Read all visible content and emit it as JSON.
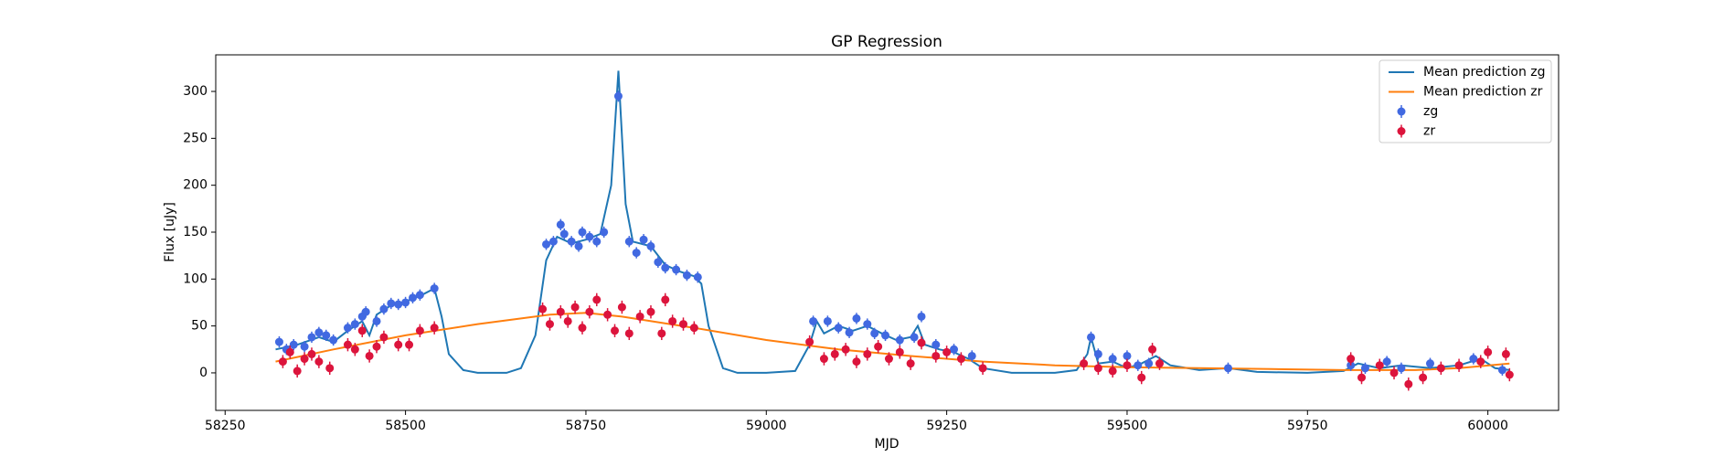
{
  "chart_data": {
    "type": "line",
    "title": "GP Regression",
    "xlabel": "MJD",
    "ylabel": "Flux [uJy]",
    "xlim": [
      58237,
      60098
    ],
    "ylim": [
      -40,
      339
    ],
    "xticks": [
      58250,
      58500,
      58750,
      59000,
      59250,
      59500,
      59750,
      60000
    ],
    "yticks": [
      0,
      50,
      100,
      150,
      200,
      250,
      300
    ],
    "grid": false,
    "legend": "upper right",
    "series": [
      {
        "name": "Mean prediction zg",
        "type": "line",
        "color": "#1f77b4",
        "x": [
          58320,
          58350,
          58380,
          58400,
          58420,
          58440,
          58450,
          58460,
          58480,
          58500,
          58520,
          58540,
          58550,
          58560,
          58580,
          58600,
          58640,
          58660,
          58680,
          58695,
          58710,
          58730,
          58750,
          58770,
          58785,
          58795,
          58805,
          58815,
          58840,
          58860,
          58880,
          58900,
          58910,
          58920,
          58940,
          58960,
          59000,
          59040,
          59060,
          59070,
          59080,
          59100,
          59120,
          59140,
          59160,
          59180,
          59200,
          59210,
          59220,
          59240,
          59260,
          59280,
          59300,
          59340,
          59400,
          59430,
          59445,
          59450,
          59460,
          59480,
          59500,
          59520,
          59540,
          59560,
          59600,
          59640,
          59680,
          59750,
          59800,
          59820,
          59850,
          59880,
          59920,
          59960,
          59990,
          60010,
          60030
        ],
        "values": [
          25,
          30,
          38,
          33,
          45,
          55,
          40,
          62,
          72,
          76,
          82,
          90,
          60,
          20,
          3,
          0,
          0,
          5,
          40,
          120,
          145,
          138,
          142,
          148,
          200,
          322,
          180,
          140,
          135,
          115,
          108,
          103,
          95,
          50,
          5,
          0,
          0,
          2,
          30,
          55,
          42,
          50,
          45,
          50,
          42,
          35,
          38,
          50,
          30,
          25,
          22,
          15,
          5,
          0,
          0,
          3,
          20,
          38,
          10,
          12,
          5,
          10,
          18,
          8,
          3,
          5,
          1,
          0,
          2,
          10,
          5,
          8,
          5,
          8,
          15,
          5,
          3
        ]
      },
      {
        "name": "Mean prediction zr",
        "type": "line",
        "color": "#ff7f0e",
        "x": [
          58320,
          58400,
          58500,
          58600,
          58700,
          58750,
          58800,
          58900,
          59000,
          59100,
          59200,
          59300,
          59400,
          59500,
          59600,
          59700,
          59800,
          59900,
          59960,
          60030
        ],
        "values": [
          12,
          25,
          40,
          52,
          62,
          64,
          60,
          48,
          35,
          25,
          18,
          12,
          8,
          6,
          5,
          4,
          3,
          3,
          5,
          10
        ]
      },
      {
        "name": "zg",
        "type": "errorbar",
        "color": "#4169e1",
        "yerr": 6,
        "x": [
          58325,
          58335,
          58345,
          58360,
          58370,
          58380,
          58390,
          58400,
          58420,
          58430,
          58440,
          58445,
          58460,
          58470,
          58480,
          58490,
          58500,
          58510,
          58520,
          58540,
          58695,
          58705,
          58715,
          58720,
          58730,
          58740,
          58745,
          58755,
          58765,
          58775,
          58795,
          58810,
          58820,
          58830,
          58840,
          58850,
          58860,
          58875,
          58890,
          58905,
          59065,
          59085,
          59100,
          59115,
          59125,
          59140,
          59150,
          59165,
          59185,
          59205,
          59215,
          59235,
          59260,
          59285,
          59450,
          59460,
          59480,
          59500,
          59515,
          59530,
          59640,
          59810,
          59830,
          59860,
          59880,
          59920,
          59980,
          60020
        ],
        "values": [
          33,
          25,
          30,
          28,
          38,
          43,
          40,
          35,
          48,
          52,
          60,
          65,
          55,
          68,
          74,
          73,
          75,
          80,
          83,
          90,
          137,
          140,
          158,
          148,
          140,
          135,
          150,
          145,
          140,
          150,
          295,
          140,
          128,
          142,
          135,
          118,
          112,
          110,
          104,
          102,
          55,
          55,
          48,
          43,
          58,
          52,
          42,
          40,
          35,
          38,
          60,
          30,
          25,
          18,
          38,
          20,
          15,
          18,
          8,
          10,
          5,
          8,
          5,
          12,
          5,
          10,
          15,
          3
        ]
      },
      {
        "name": "zr",
        "type": "errorbar",
        "color": "#dc143c",
        "yerr": 7,
        "x": [
          58330,
          58340,
          58350,
          58360,
          58370,
          58380,
          58395,
          58420,
          58430,
          58440,
          58450,
          58460,
          58470,
          58490,
          58505,
          58520,
          58540,
          58690,
          58700,
          58715,
          58725,
          58735,
          58745,
          58755,
          58765,
          58780,
          58790,
          58800,
          58810,
          58825,
          58840,
          58855,
          58860,
          58870,
          58885,
          58900,
          59060,
          59080,
          59095,
          59110,
          59125,
          59140,
          59155,
          59170,
          59185,
          59200,
          59215,
          59235,
          59250,
          59270,
          59300,
          59440,
          59460,
          59480,
          59500,
          59520,
          59535,
          59545,
          59810,
          59825,
          59850,
          59870,
          59890,
          59910,
          59935,
          59960,
          59990,
          60000,
          60025,
          60030
        ],
        "values": [
          12,
          22,
          2,
          15,
          20,
          12,
          5,
          30,
          25,
          45,
          18,
          28,
          38,
          30,
          30,
          45,
          48,
          68,
          52,
          65,
          55,
          70,
          48,
          65,
          78,
          62,
          45,
          70,
          42,
          60,
          65,
          42,
          78,
          55,
          52,
          48,
          33,
          15,
          20,
          25,
          12,
          20,
          28,
          15,
          22,
          10,
          32,
          18,
          22,
          15,
          5,
          10,
          5,
          2,
          8,
          -5,
          25,
          10,
          15,
          -5,
          8,
          0,
          -12,
          -5,
          5,
          8,
          12,
          22,
          20,
          -2
        ]
      }
    ]
  }
}
